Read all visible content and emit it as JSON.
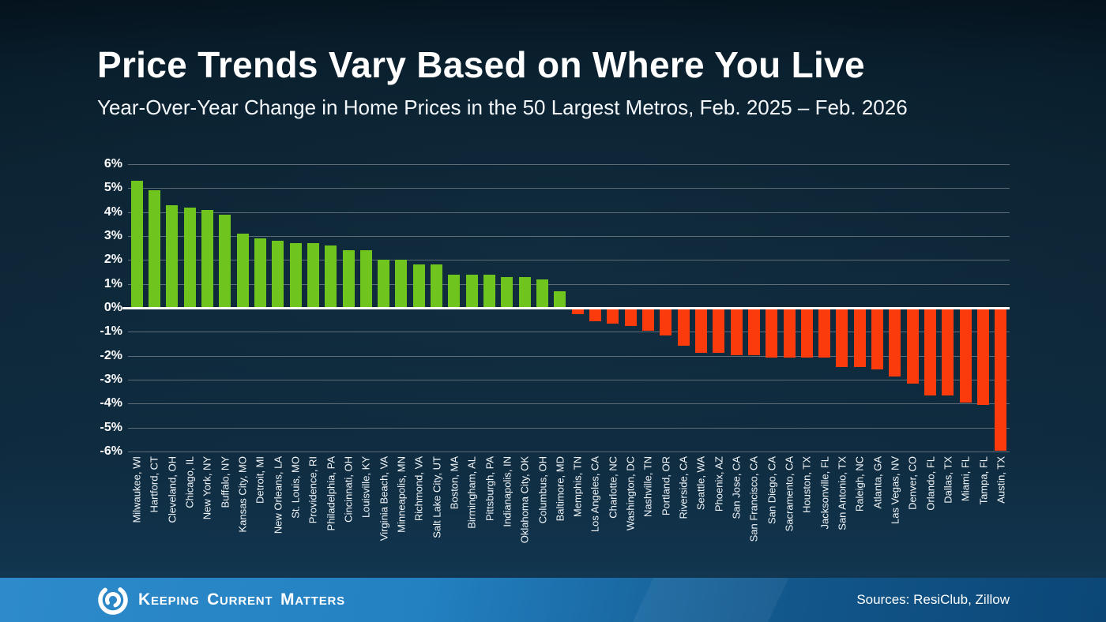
{
  "header": {
    "title": "Price Trends Vary Based on Where You Live",
    "subtitle": "Year-Over-Year Change in Home Prices in the 50 Largest Metros, Feb. 2025 – Feb. 2026"
  },
  "chart_data": {
    "type": "bar",
    "title": "Price Trends Vary Based on Where You Live",
    "subtitle": "Year-Over-Year Change in Home Prices in the 50 Largest Metros, Feb. 2025 – Feb. 2026",
    "xlabel": "",
    "ylabel": "",
    "axis": {
      "ymin": -6,
      "ymax": 6,
      "tick_step": 1,
      "tick_format": "percent"
    },
    "grid": true,
    "legend": "none",
    "yticks": [
      "6%",
      "5%",
      "4%",
      "3%",
      "2%",
      "1%",
      "0%",
      "-1%",
      "-2%",
      "-3%",
      "-4%",
      "-5%",
      "-6%"
    ],
    "categories": [
      "Milwaukee, WI",
      "Hartford, CT",
      "Cleveland, OH",
      "Chicago, IL",
      "New York, NY",
      "Buffalo, NY",
      "Kansas City, MO",
      "Detroit, MI",
      "New Orleans, LA",
      "St. Louis, MO",
      "Providence, RI",
      "Philadelphia, PA",
      "Cincinnati, OH",
      "Louisville, KY",
      "Virginia Beach, VA",
      "Minneapolis, MN",
      "Richmond, VA",
      "Salt Lake City, UT",
      "Boston, MA",
      "Birmingham, AL",
      "Pittsburgh, PA",
      "Indianapolis, IN",
      "Oklahoma City, OK",
      "Columbus, OH",
      "Baltimore, MD",
      "Memphis, TN",
      "Los Angeles, CA",
      "Charlotte, NC",
      "Washington, DC",
      "Nashville, TN",
      "Portland, OR",
      "Riverside, CA",
      "Seattle, WA",
      "Phoenix, AZ",
      "San Jose, CA",
      "San Francisco, CA",
      "San Diego, CA",
      "Sacramento, CA",
      "Houston, TX",
      "Jacksonville, FL",
      "San Antonio, TX",
      "Raleigh, NC",
      "Atlanta, GA",
      "Las Vegas, NV",
      "Denver, CO",
      "Orlando, FL",
      "Dallas, TX",
      "Miami, FL",
      "Tampa, FL",
      "Austin, TX"
    ],
    "values": [
      5.3,
      4.9,
      4.3,
      4.2,
      4.1,
      3.9,
      3.1,
      2.9,
      2.8,
      2.7,
      2.7,
      2.6,
      2.4,
      2.4,
      2.0,
      2.0,
      1.8,
      1.8,
      1.4,
      1.4,
      1.4,
      1.3,
      1.3,
      1.2,
      0.7,
      -0.2,
      -0.5,
      -0.6,
      -0.7,
      -0.9,
      -1.1,
      -1.5,
      -1.8,
      -1.8,
      -1.9,
      -1.9,
      -2.0,
      -2.0,
      -2.0,
      -2.0,
      -2.4,
      -2.4,
      -2.5,
      -2.8,
      -3.1,
      -3.6,
      -3.6,
      -3.9,
      -4.0,
      -5.9
    ],
    "positive_color": "#6fc41d",
    "negative_color": "#fb3b0c",
    "gridline_color": "#5d6c76",
    "zero_line_color": "#ffffff"
  },
  "footer": {
    "brand": "Keeping Current Matters",
    "sources": "Sources: ResiClub, Zillow",
    "bar_color_left": "#2e8aca",
    "bar_color_right": "#0b4676"
  }
}
